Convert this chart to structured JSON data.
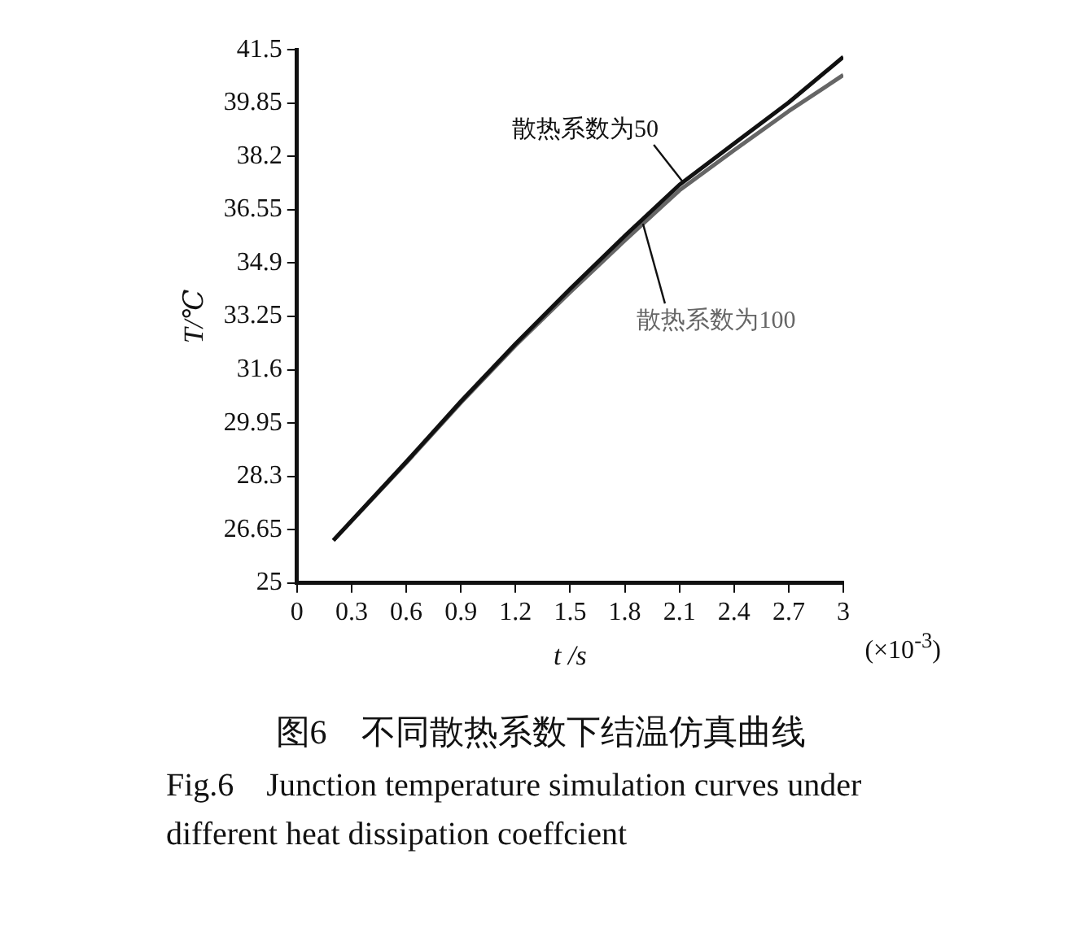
{
  "chart_data": {
    "type": "line",
    "title": "图6　不同散热系数下结温仿真曲线",
    "subtitle": "Fig.6　Junction temperature simulation curves under different heat dissipation coeffcient",
    "xlabel": "t /s",
    "ylabel": "T/℃",
    "annotations": [
      "(×10$^{-3}$)"
    ],
    "x": [
      0.2,
      0.6,
      0.9,
      1.2,
      1.5,
      1.8,
      2.1,
      2.4,
      2.7,
      3.0
    ],
    "series": [
      {
        "name": "散热系数为50",
        "color": "#111111",
        "values": [
          26.32,
          28.75,
          30.62,
          32.4,
          34.1,
          35.74,
          37.32,
          38.6,
          39.87,
          41.28
        ]
      },
      {
        "name": "散热系数为100",
        "color": "#666666",
        "values": [
          26.32,
          28.72,
          30.58,
          32.35,
          34.0,
          35.6,
          37.15,
          38.39,
          39.6,
          40.72
        ]
      }
    ],
    "xlim": [
      0,
      3
    ],
    "xticks": [
      0,
      0.3,
      0.6,
      0.9,
      1.2,
      1.5,
      1.8,
      2.1,
      2.4,
      2.7,
      3
    ],
    "ylim": [
      25,
      41.5
    ],
    "yticks": [
      25,
      26.65,
      28.3,
      29.95,
      31.6,
      33.25,
      34.9,
      36.55,
      38.2,
      39.85,
      41.5
    ],
    "grid": false,
    "legend": false,
    "marker": "none",
    "line_style": "solid"
  }
}
